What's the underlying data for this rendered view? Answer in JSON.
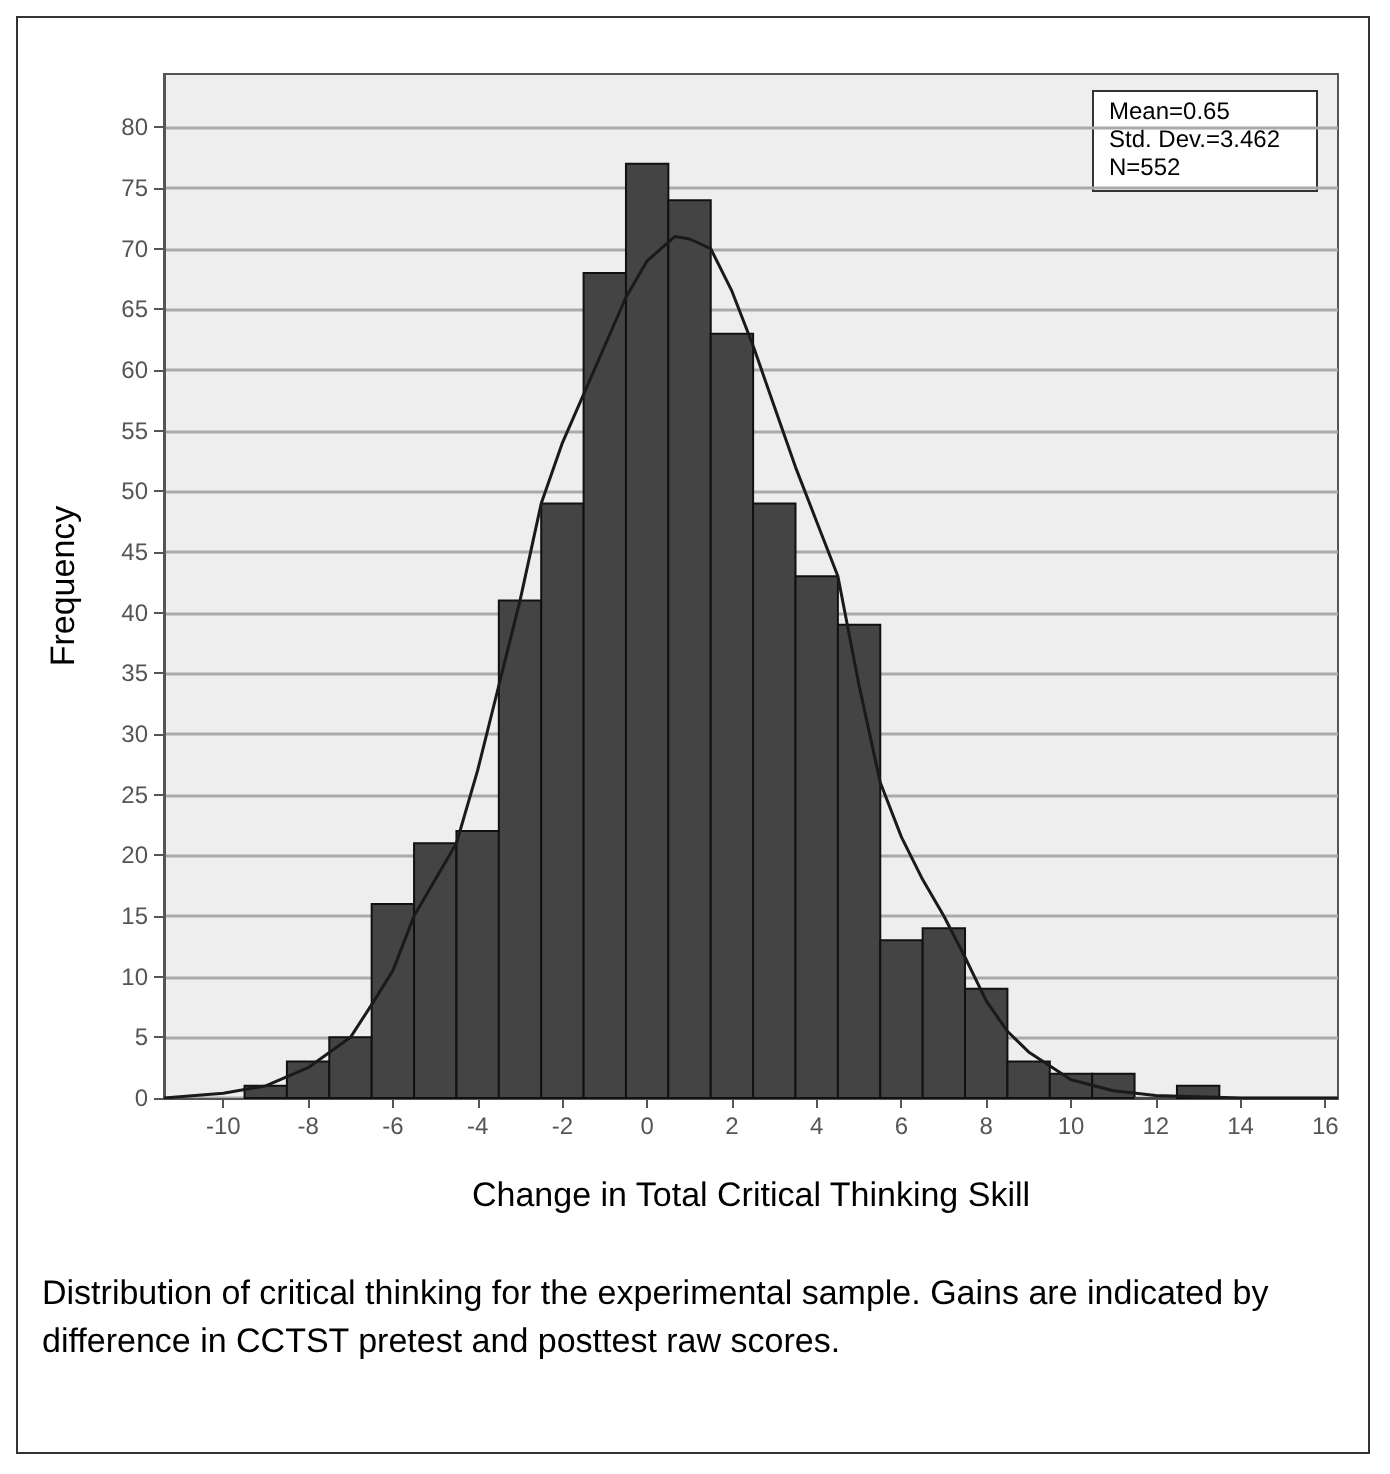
{
  "chart_data": {
    "type": "histogram",
    "xlabel": "Change in Total Critical Thinking Skill",
    "ylabel": "Frequency",
    "bins": [
      -9.5,
      -8.5,
      -7.5,
      -6.5,
      -5.5,
      -4.5,
      -3.5,
      -2.5,
      -1.5,
      -0.5,
      0.5,
      1.5,
      2.5,
      3.5,
      4.5,
      5.5,
      6.5,
      7.5,
      8.5,
      9.5,
      10.5,
      11.5,
      12.5,
      13.5
    ],
    "values": [
      1,
      3,
      5,
      16,
      21,
      22,
      41,
      49,
      68,
      77,
      74,
      63,
      49,
      43,
      39,
      13,
      14,
      9,
      3,
      2,
      2,
      0,
      1
    ],
    "color": "#444444",
    "series": [
      {
        "type": "line",
        "color": "#1a1a1a",
        "x": [
          -11.4,
          -10,
          -9,
          -8,
          -7,
          -6.5,
          -6,
          -5.5,
          -5,
          -4.5,
          -4,
          -3.5,
          -3,
          -2.5,
          -2,
          -1.5,
          -1,
          -0.5,
          0,
          0.65,
          1,
          1.5,
          2,
          2.5,
          3,
          3.5,
          4,
          4.5,
          5,
          5.5,
          6,
          6.5,
          7,
          7.5,
          8,
          8.5,
          9,
          10,
          11,
          12,
          13,
          14,
          16.3
        ],
        "values": [
          0,
          0.4,
          1,
          2.5,
          5,
          7.7,
          10.5,
          15,
          18,
          21,
          27,
          34,
          41,
          49,
          54,
          58,
          62,
          66,
          69,
          71,
          70.8,
          70,
          66.5,
          62,
          57,
          52,
          47.5,
          43,
          34,
          26,
          21.5,
          18,
          15,
          11.6,
          8,
          5.5,
          3.8,
          1.5,
          0.6,
          0.2,
          0.1,
          0,
          0
        ]
      }
    ],
    "xlim": [
      -11.4,
      16.3
    ],
    "xticks": [
      -10,
      -8,
      -6,
      -4,
      -2,
      0,
      2,
      4,
      6,
      8,
      10,
      12,
      14,
      16
    ],
    "ylim": [
      0,
      84.4
    ],
    "yticks": [
      0,
      5,
      10,
      15,
      20,
      25,
      30,
      35,
      40,
      45,
      50,
      55,
      60,
      65,
      70,
      75,
      80
    ],
    "grid": "y",
    "marker": "none",
    "line_style": "solid",
    "annotations": [
      "Mean=0.65",
      "Std. Dev.=3.462",
      "N=552",
      "Distribution of critical thinking for the experimental sample. Gains are indicated by difference in CCTST pretest and posttest raw scores."
    ]
  }
}
